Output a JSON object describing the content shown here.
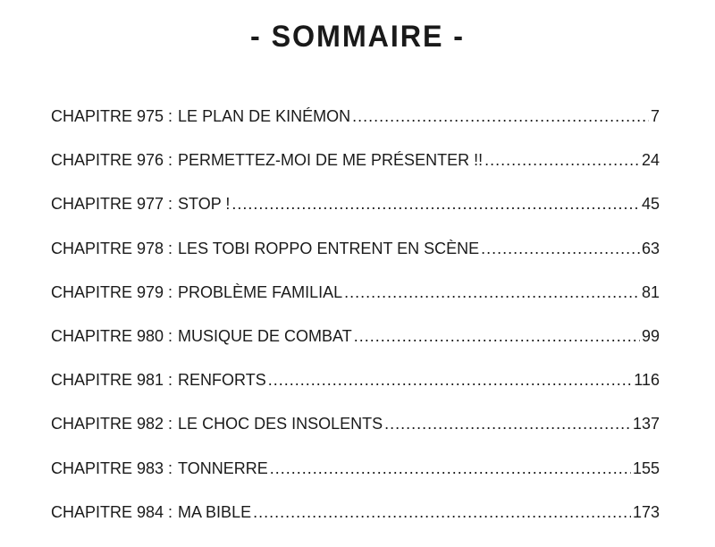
{
  "title": "- SOMMAIRE -",
  "entries": [
    {
      "chapter": "CHAPITRE 975 :",
      "label": "LE PLAN DE KINÉMON",
      "page": "7"
    },
    {
      "chapter": "CHAPITRE 976 :",
      "label": "PERMETTEZ-MOI DE ME PRÉSENTER !!",
      "page": "24"
    },
    {
      "chapter": "CHAPITRE 977 :",
      "label": "STOP !",
      "page": "45"
    },
    {
      "chapter": "CHAPITRE 978 :",
      "label": "LES TOBI ROPPO ENTRENT EN SCÈNE",
      "page": "63"
    },
    {
      "chapter": "CHAPITRE 979 :",
      "label": "PROBLÈME FAMILIAL",
      "page": "81"
    },
    {
      "chapter": "CHAPITRE 980 :",
      "label": "MUSIQUE DE COMBAT",
      "page": "99"
    },
    {
      "chapter": "CHAPITRE 981 :",
      "label": "RENFORTS",
      "page": "116"
    },
    {
      "chapter": "CHAPITRE 982 :",
      "label": "LE CHOC DES INSOLENTS",
      "page": "137"
    },
    {
      "chapter": "CHAPITRE 983 :",
      "label": "TONNERRE",
      "page": "155"
    },
    {
      "chapter": "CHAPITRE 984 :",
      "label": "MA BIBLE",
      "page": "173"
    }
  ]
}
